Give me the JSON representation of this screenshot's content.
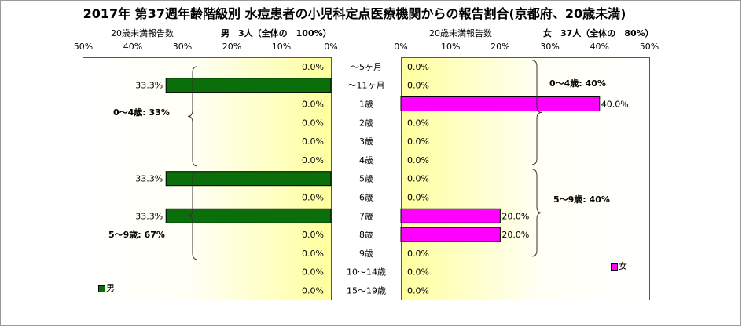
{
  "title": "2017年 第37週年齢階級別 水痘患者の小児科定点医療機関からの報告割合(京都府、20歳未満)",
  "male_panel": {
    "axis_caption": "20歳未満報告数",
    "count_caption": "男　3人（全体の　100%）",
    "legend_label": "男",
    "group_notes": [
      "0～4歳: 33%",
      "5～9歳: 67%"
    ]
  },
  "female_panel": {
    "axis_caption": "20歳未満報告数",
    "count_caption": "女　37人（全体の　80%）",
    "legend_label": "女",
    "group_notes": [
      "0～4歳: 40%",
      "5～9歳: 40%"
    ]
  },
  "colors": {
    "male": "#0a6e0a",
    "female": "#ff00ff"
  },
  "chart_data": [
    {
      "type": "bar",
      "orientation": "horizontal",
      "direction": "right-to-left",
      "series": [
        {
          "name": "男",
          "values": [
            0,
            33.3,
            0,
            0,
            0,
            0,
            33.3,
            0,
            33.3,
            0,
            0,
            0,
            0
          ]
        }
      ],
      "categories": [
        "～5ヶ月",
        "～11ヶ月",
        "1歳",
        "2歳",
        "3歳",
        "4歳",
        "5歳",
        "6歳",
        "7歳",
        "8歳",
        "9歳",
        "10～14歳",
        "15～19歳"
      ],
      "value_labels": [
        "0.0%",
        "33.3%",
        "0.0%",
        "0.0%",
        "0.0%",
        "0.0%",
        "33.3%",
        "0.0%",
        "33.3%",
        "0.0%",
        "0.0%",
        "0.0%",
        "0.0%"
      ],
      "xlim": [
        0,
        50
      ],
      "xticks": [
        "50%",
        "40%",
        "30%",
        "20%",
        "10%",
        "0%"
      ],
      "legend": "bottom-left"
    },
    {
      "type": "bar",
      "orientation": "horizontal",
      "direction": "left-to-right",
      "series": [
        {
          "name": "女",
          "values": [
            0,
            0,
            40,
            0,
            0,
            0,
            0,
            0,
            20,
            20,
            0,
            0,
            0
          ]
        }
      ],
      "categories": [
        "～5ヶ月",
        "～11ヶ月",
        "1歳",
        "2歳",
        "3歳",
        "4歳",
        "5歳",
        "6歳",
        "7歳",
        "8歳",
        "9歳",
        "10～14歳",
        "15～19歳"
      ],
      "value_labels": [
        "0.0%",
        "0.0%",
        "40.0%",
        "0.0%",
        "0.0%",
        "0.0%",
        "0.0%",
        "0.0%",
        "20.0%",
        "20.0%",
        "0.0%",
        "0.0%",
        "0.0%"
      ],
      "xlim": [
        0,
        50
      ],
      "xticks": [
        "0%",
        "10%",
        "20%",
        "30%",
        "40%",
        "50%"
      ],
      "legend": "bottom-right"
    }
  ]
}
